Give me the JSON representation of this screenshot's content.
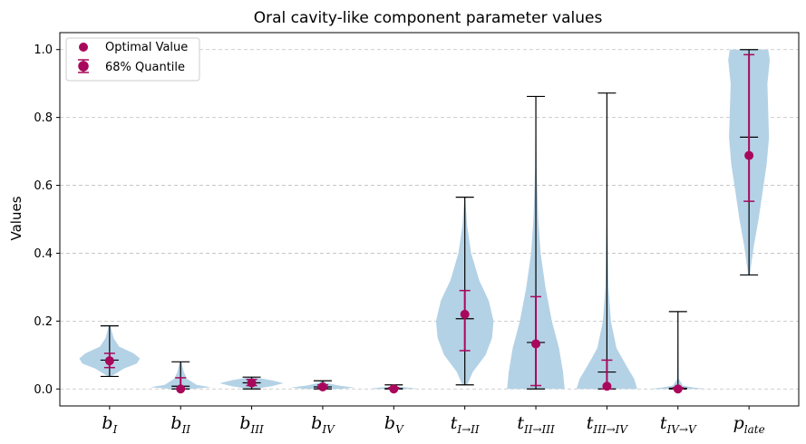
{
  "chart_data": {
    "type": "violin",
    "title": "Oral cavity-like component parameter values",
    "ylabel": "Values",
    "ylim": [
      -0.05,
      1.05
    ],
    "yticks": [
      0.0,
      0.2,
      0.4,
      0.6,
      0.8,
      1.0
    ],
    "ytick_labels": [
      "0.0",
      "0.2",
      "0.4",
      "0.6",
      "0.8",
      "1.0"
    ],
    "grid": "horizontal dashed",
    "legend_position": "top-left",
    "legend": [
      {
        "label": "Optimal Value",
        "marker": "dot"
      },
      {
        "label": "68% Quantile",
        "marker": "errorbar"
      }
    ],
    "colors": {
      "violin": "#b4d2e6",
      "optimal": "#a8085c",
      "whisker": "#000000",
      "grid": "#bfbfbf"
    },
    "categories": [
      {
        "base": "b",
        "sub": "I"
      },
      {
        "base": "b",
        "sub": "II"
      },
      {
        "base": "b",
        "sub": "III"
      },
      {
        "base": "b",
        "sub": "IV"
      },
      {
        "base": "b",
        "sub": "V"
      },
      {
        "base": "t",
        "sub": "I→II"
      },
      {
        "base": "t",
        "sub": "II→III"
      },
      {
        "base": "t",
        "sub": "III→IV"
      },
      {
        "base": "t",
        "sub": "IV→V"
      },
      {
        "base": "p",
        "sub": "late"
      }
    ],
    "series": [
      {
        "min": 0.037,
        "max": 0.186,
        "median": 0.085,
        "optimal": 0.083,
        "q_low": 0.063,
        "q_high": 0.105,
        "violin": [
          [
            0.037,
            0.2
          ],
          [
            0.06,
            1.8
          ],
          [
            0.075,
            3.4
          ],
          [
            0.09,
            3.8
          ],
          [
            0.105,
            3.0
          ],
          [
            0.125,
            1.2
          ],
          [
            0.15,
            0.5
          ],
          [
            0.186,
            0.1
          ]
        ]
      },
      {
        "min": 0.0,
        "max": 0.08,
        "median": 0.008,
        "optimal": 0.0,
        "q_low": 0.0,
        "q_high": 0.033,
        "violin": [
          [
            0.0,
            1.2
          ],
          [
            0.005,
            3.8
          ],
          [
            0.012,
            2.0
          ],
          [
            0.03,
            0.8
          ],
          [
            0.05,
            0.4
          ],
          [
            0.08,
            0.1
          ]
        ]
      },
      {
        "min": 0.0,
        "max": 0.035,
        "median": 0.018,
        "optimal": 0.018,
        "q_low": 0.01,
        "q_high": 0.028,
        "violin": [
          [
            0.0,
            0.3
          ],
          [
            0.008,
            2.5
          ],
          [
            0.017,
            4.0
          ],
          [
            0.026,
            2.4
          ],
          [
            0.035,
            0.3
          ]
        ]
      },
      {
        "min": 0.0,
        "max": 0.024,
        "median": 0.006,
        "optimal": 0.006,
        "q_low": 0.002,
        "q_high": 0.012,
        "violin": [
          [
            0.0,
            2.0
          ],
          [
            0.004,
            4.0
          ],
          [
            0.01,
            2.0
          ],
          [
            0.017,
            0.6
          ],
          [
            0.024,
            0.1
          ]
        ]
      },
      {
        "min": 0.0,
        "max": 0.012,
        "median": 0.001,
        "optimal": 0.0,
        "q_low": 0.0,
        "q_high": 0.004,
        "violin": [
          [
            0.0,
            3.0
          ],
          [
            0.003,
            2.2
          ],
          [
            0.007,
            0.6
          ],
          [
            0.012,
            0.1
          ]
        ]
      },
      {
        "min": 0.012,
        "max": 0.565,
        "median": 0.207,
        "optimal": 0.22,
        "q_low": 0.113,
        "q_high": 0.29,
        "violin": [
          [
            0.012,
            0.3
          ],
          [
            0.05,
            1.0
          ],
          [
            0.1,
            2.6
          ],
          [
            0.15,
            3.4
          ],
          [
            0.2,
            3.6
          ],
          [
            0.26,
            3.0
          ],
          [
            0.32,
            1.8
          ],
          [
            0.4,
            0.8
          ],
          [
            0.48,
            0.3
          ],
          [
            0.565,
            0.05
          ]
        ]
      },
      {
        "min": 0.0,
        "max": 0.862,
        "median": 0.137,
        "optimal": 0.133,
        "q_low": 0.01,
        "q_high": 0.272,
        "violin": [
          [
            0.0,
            3.6
          ],
          [
            0.05,
            3.4
          ],
          [
            0.12,
            2.9
          ],
          [
            0.2,
            2.0
          ],
          [
            0.3,
            1.2
          ],
          [
            0.4,
            0.6
          ],
          [
            0.5,
            0.3
          ],
          [
            0.65,
            0.1
          ],
          [
            0.862,
            0.02
          ]
        ]
      },
      {
        "min": 0.0,
        "max": 0.872,
        "median": 0.05,
        "optimal": 0.008,
        "q_low": 0.0,
        "q_high": 0.085,
        "violin": [
          [
            0.0,
            3.8
          ],
          [
            0.03,
            3.4
          ],
          [
            0.07,
            2.4
          ],
          [
            0.12,
            1.2
          ],
          [
            0.2,
            0.5
          ],
          [
            0.3,
            0.2
          ],
          [
            0.5,
            0.06
          ],
          [
            0.872,
            0.01
          ]
        ]
      },
      {
        "min": 0.0,
        "max": 0.228,
        "median": 0.002,
        "optimal": 0.0,
        "q_low": 0.0,
        "q_high": 0.004,
        "violin": [
          [
            0.0,
            3.6
          ],
          [
            0.004,
            2.0
          ],
          [
            0.01,
            0.6
          ],
          [
            0.03,
            0.1
          ],
          [
            0.228,
            0.0
          ]
        ]
      },
      {
        "min": 0.336,
        "max": 1.0,
        "median": 0.742,
        "optimal": 0.688,
        "q_low": 0.553,
        "q_high": 0.985,
        "violin": [
          [
            0.336,
            0.1
          ],
          [
            0.42,
            0.6
          ],
          [
            0.5,
            1.2
          ],
          [
            0.58,
            1.7
          ],
          [
            0.66,
            2.2
          ],
          [
            0.74,
            2.5
          ],
          [
            0.82,
            2.4
          ],
          [
            0.9,
            2.3
          ],
          [
            0.97,
            2.6
          ],
          [
            1.0,
            2.4
          ]
        ]
      }
    ]
  }
}
